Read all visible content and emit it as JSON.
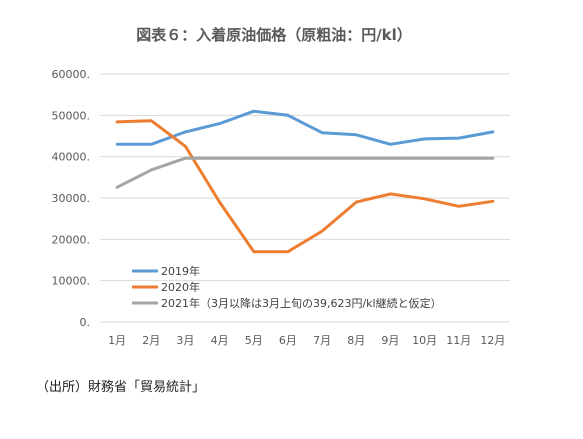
{
  "chart_data": {
    "type": "line",
    "title": "図表６：入着原油価格（原粗油：円/kl）",
    "categories": [
      "1月",
      "2月",
      "3月",
      "4月",
      "5月",
      "6月",
      "7月",
      "8月",
      "9月",
      "10月",
      "11月",
      "12月"
    ],
    "ylim": [
      0,
      60000
    ],
    "yticks": [
      0,
      10000,
      20000,
      30000,
      40000,
      50000,
      60000
    ],
    "ytick_labels": [
      "0.",
      "10000.",
      "20000.",
      "30000.",
      "40000.",
      "50000.",
      "60000."
    ],
    "grid": true,
    "legend_position": "bottom-left",
    "series": [
      {
        "name": "2019年",
        "color": "#5B9BD5",
        "values": [
          43000,
          43000,
          46000,
          48000,
          51000,
          50000,
          45800,
          45300,
          43000,
          44300,
          44500,
          46000
        ]
      },
      {
        "name": "2020年",
        "color": "#ED7D31",
        "values": [
          48400,
          48700,
          42500,
          29000,
          17000,
          17000,
          22000,
          29000,
          31000,
          29800,
          28000,
          29200
        ]
      },
      {
        "name": "2021年（3月以降は3月上旬の39,623円/kl継続と仮定）",
        "color": "#A5A5A5",
        "values": [
          32600,
          36800,
          39623,
          39623,
          39623,
          39623,
          39623,
          39623,
          39623,
          39623,
          39623,
          39623
        ]
      }
    ]
  },
  "source_note": "（出所）財務省「貿易統計」"
}
